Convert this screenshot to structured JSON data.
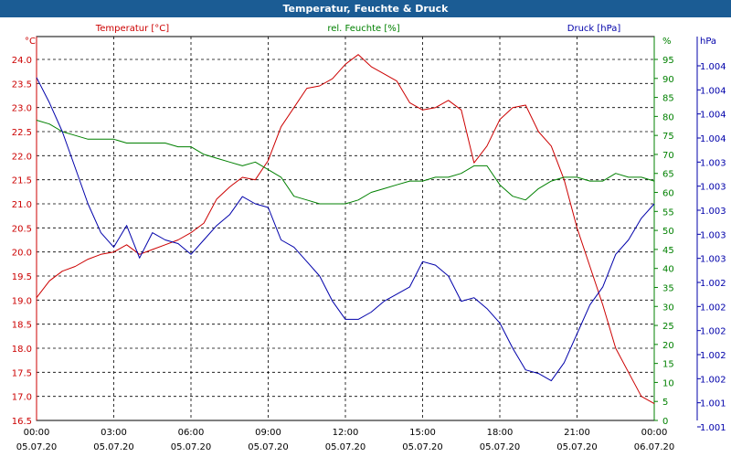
{
  "title": "Temperatur, Feuchte & Druck",
  "colors": {
    "temperature": "#cc0000",
    "humidity": "#008000",
    "pressure": "#0000aa",
    "titlebar": "#1b5c94"
  },
  "chart_data": {
    "type": "line",
    "grid": true,
    "title": "Temperatur, Feuchte & Druck",
    "x_ticks": [
      {
        "time": "00:00",
        "date": "05.07.20"
      },
      {
        "time": "03:00",
        "date": "05.07.20"
      },
      {
        "time": "06:00",
        "date": "05.07.20"
      },
      {
        "time": "09:00",
        "date": "05.07.20"
      },
      {
        "time": "12:00",
        "date": "05.07.20"
      },
      {
        "time": "15:00",
        "date": "05.07.20"
      },
      {
        "time": "18:00",
        "date": "05.07.20"
      },
      {
        "time": "21:00",
        "date": "05.07.20"
      },
      {
        "time": "00:00",
        "date": "06.07.20"
      }
    ],
    "x": [
      0,
      0.5,
      1,
      1.5,
      2,
      2.5,
      3,
      3.5,
      4,
      4.5,
      5,
      5.5,
      6,
      6.5,
      7,
      7.5,
      8,
      8.5,
      9,
      9.5,
      10,
      10.5,
      11,
      11.5,
      12,
      12.5,
      13,
      13.5,
      14,
      14.5,
      15,
      15.5,
      16,
      16.5,
      17,
      17.5,
      18,
      18.5,
      19,
      19.5,
      20,
      20.5,
      21,
      21.5,
      22,
      22.5,
      23,
      23.5,
      24
    ],
    "axes": {
      "left": {
        "label": "Temperatur [°C]",
        "unit": "°C",
        "min": 16.5,
        "max": 24.0,
        "ticks": [
          "24.0",
          "23.5",
          "23.0",
          "22.5",
          "22.0",
          "21.5",
          "21.0",
          "20.5",
          "20.0",
          "19.5",
          "19.0",
          "18.5",
          "18.0",
          "17.5",
          "17.0",
          "16.5"
        ]
      },
      "mid": {
        "label": "rel. Feuchte [%]",
        "unit": "%",
        "min": 0,
        "max": 95,
        "ticks": [
          "95",
          "90",
          "85",
          "80",
          "75",
          "70",
          "65",
          "60",
          "55",
          "50",
          "45",
          "40",
          "35",
          "30",
          "25",
          "20",
          "15",
          "10",
          "5",
          "0"
        ]
      },
      "right": {
        "label": "Druck [hPa]",
        "unit": "hPa",
        "min": 0,
        "max": 100,
        "ticks": [
          "1.004",
          "1.004",
          "1.004",
          "1.004",
          "1.003",
          "1.003",
          "1.003",
          "1.003",
          "1.003",
          "1.002",
          "1.002",
          "1.002",
          "1.002",
          "1.002",
          "1.001",
          "1.001"
        ]
      }
    },
    "series": [
      {
        "name": "Temperatur [°C]",
        "axis": "left",
        "values": [
          19.05,
          19.4,
          19.6,
          19.7,
          19.85,
          19.95,
          20.0,
          20.15,
          19.95,
          20.05,
          20.15,
          20.25,
          20.4,
          20.6,
          21.1,
          21.35,
          21.55,
          21.5,
          21.9,
          22.6,
          23.0,
          23.4,
          23.45,
          23.6,
          23.9,
          24.1,
          23.85,
          23.7,
          23.55,
          23.1,
          22.95,
          23.0,
          23.15,
          22.95,
          21.85,
          22.2,
          22.75,
          23.0,
          23.05,
          22.5,
          22.2,
          21.5,
          20.5,
          19.7,
          18.9,
          18.0,
          17.5,
          17.0,
          16.85
        ]
      },
      {
        "name": "rel. Feuchte [%]",
        "axis": "mid",
        "values": [
          79,
          78,
          76,
          75,
          74,
          74,
          74,
          73,
          73,
          73,
          73,
          72,
          72,
          70,
          69,
          68,
          67,
          68,
          66,
          64,
          59,
          58,
          57,
          57,
          57,
          58,
          60,
          61,
          62,
          63,
          63,
          64,
          64,
          65,
          67,
          67,
          62,
          59,
          58,
          61,
          63,
          64,
          64,
          63,
          63,
          65,
          64,
          64,
          63
        ]
      },
      {
        "name": "Druck [hPa]",
        "axis": "right",
        "values": [
          95,
          88,
          80,
          70,
          60,
          52,
          48,
          54,
          45,
          52,
          50,
          49,
          46,
          50,
          54,
          57,
          62,
          60,
          59,
          50,
          48,
          44,
          40,
          33,
          28,
          28,
          30,
          33,
          35,
          37,
          44,
          43,
          40,
          33,
          34,
          31,
          27,
          20,
          14,
          13,
          11,
          16,
          24,
          32,
          37,
          46,
          50,
          56,
          60
        ]
      }
    ]
  }
}
